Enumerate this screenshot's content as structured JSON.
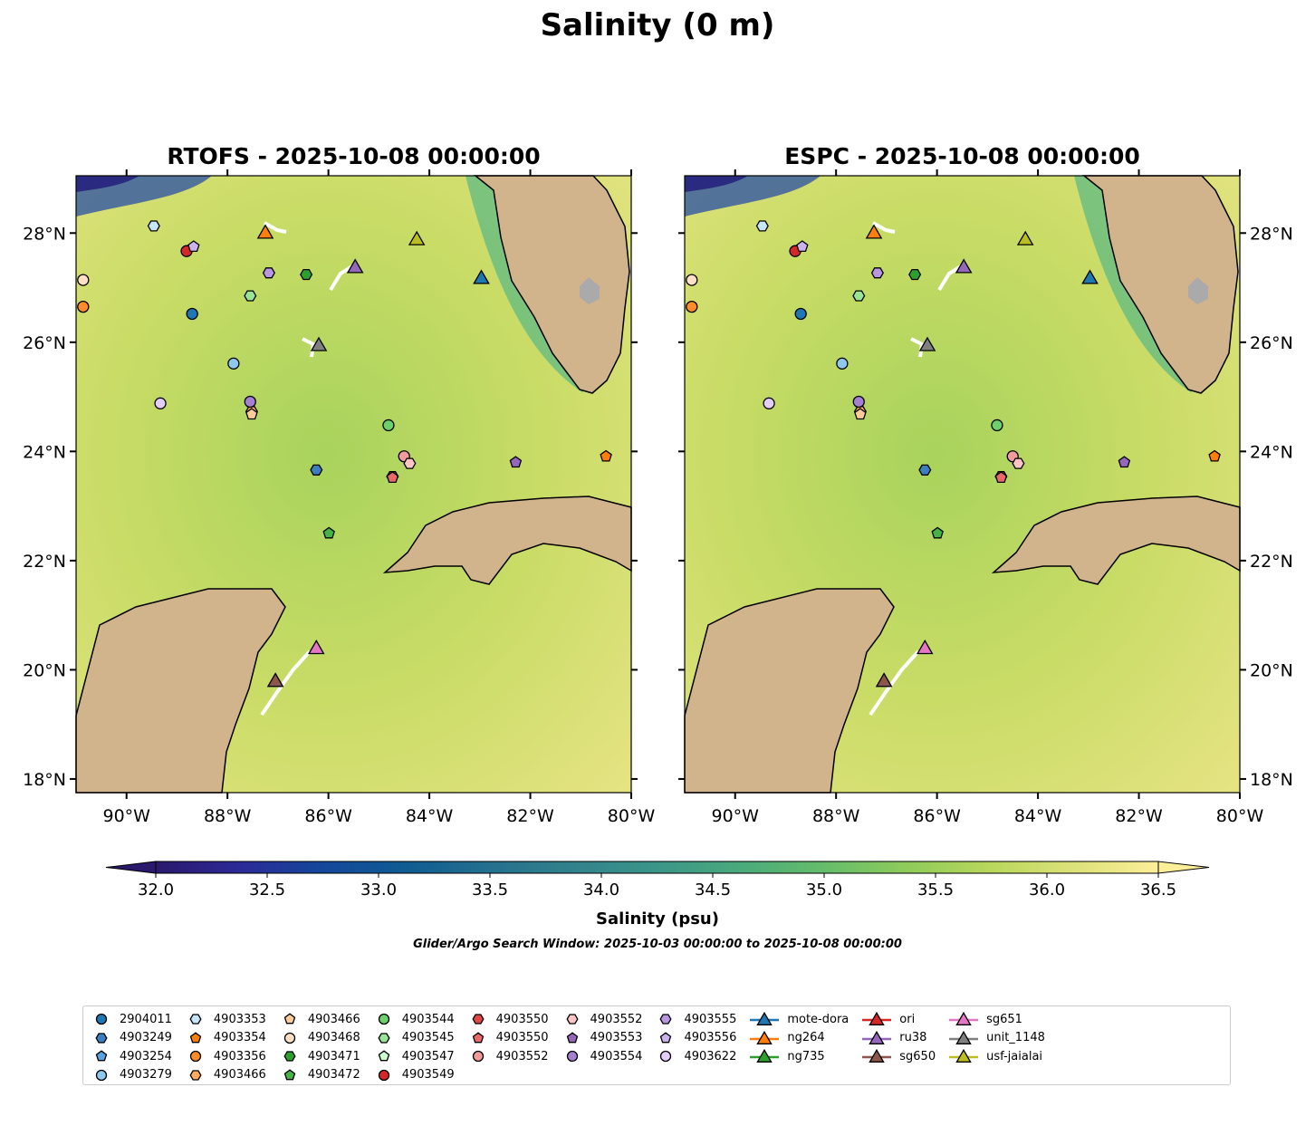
{
  "suptitle": "Salinity (0 m)",
  "window_text": "Glider/Argo Search Window: 2025-10-03 00:00:00 to 2025-10-08 00:00:00",
  "chart_data": {
    "type": "scatter",
    "panels": [
      {
        "title": "RTOFS - 2025-10-08 00:00:00"
      },
      {
        "title": "ESPC - 2025-10-08 00:00:00"
      }
    ],
    "xlim": [
      -91,
      -80
    ],
    "ylim": [
      17.75,
      29.05
    ],
    "xticks": [
      -90,
      -88,
      -86,
      -84,
      -82,
      -80
    ],
    "xtick_labels": [
      "90°W",
      "88°W",
      "86°W",
      "84°W",
      "82°W",
      "80°W"
    ],
    "yticks": [
      18,
      20,
      22,
      24,
      26,
      28
    ],
    "ytick_labels": [
      "18°N",
      "20°N",
      "22°N",
      "24°N",
      "26°N",
      "28°N"
    ],
    "colorbar": {
      "label": "Salinity (psu)",
      "min": 32.0,
      "max": 36.5,
      "ticks": [
        "32.0",
        "32.5",
        "33.0",
        "33.5",
        "34.0",
        "34.5",
        "35.0",
        "35.5",
        "36.0",
        "36.5"
      ],
      "extend": "both",
      "colormap": "haline"
    },
    "points": [
      {
        "name": "2904011",
        "marker": "circle",
        "color": "#1f77b4",
        "lon": -88.7,
        "lat": 26.52
      },
      {
        "name": "4903249",
        "marker": "hexagon",
        "color": "#3a7fc0",
        "lon": -86.24,
        "lat": 23.66
      },
      {
        "name": "4903254",
        "marker": "pentagon",
        "color": "#5aa3dc",
        "lon": null,
        "lat": null
      },
      {
        "name": "4903279",
        "marker": "circle",
        "color": "#8fc7ee",
        "lon": -87.88,
        "lat": 25.61
      },
      {
        "name": "4903353",
        "marker": "hexagon",
        "color": "#c6e6fb",
        "lon": -89.46,
        "lat": 28.13
      },
      {
        "name": "4903354",
        "marker": "pentagon",
        "color": "#ff7f0e",
        "lon": -80.5,
        "lat": 23.91
      },
      {
        "name": "4903356",
        "marker": "circle",
        "color": "#ff8c2a",
        "lon": -90.86,
        "lat": 26.65
      },
      {
        "name": "4903466",
        "marker": "hexagon",
        "color": "#ffac5e",
        "lon": -87.52,
        "lat": 24.73
      },
      {
        "name": "4903466",
        "marker": "pentagon",
        "color": "#ffcc99",
        "lon": -87.52,
        "lat": 24.68
      },
      {
        "name": "4903468",
        "marker": "circle",
        "color": "#ffe0c4",
        "lon": -90.86,
        "lat": 27.14
      },
      {
        "name": "4903471",
        "marker": "hexagon",
        "color": "#2ca02c",
        "lon": -86.44,
        "lat": 27.24
      },
      {
        "name": "4903472",
        "marker": "pentagon",
        "color": "#45b345",
        "lon": -85.99,
        "lat": 22.5
      },
      {
        "name": "4903544",
        "marker": "circle",
        "color": "#6cd16c",
        "lon": -84.81,
        "lat": 24.48
      },
      {
        "name": "4903545",
        "marker": "hexagon",
        "color": "#98e598",
        "lon": -87.55,
        "lat": 26.85
      },
      {
        "name": "4903547",
        "marker": "pentagon",
        "color": "#cffccf",
        "lon": null,
        "lat": null
      },
      {
        "name": "4903549",
        "marker": "circle",
        "color": "#d62728",
        "lon": -88.81,
        "lat": 27.67
      },
      {
        "name": "4903550",
        "marker": "hexagon",
        "color": "#e04848",
        "lon": -84.73,
        "lat": 23.54
      },
      {
        "name": "4903550",
        "marker": "pentagon",
        "color": "#ea6a6a",
        "lon": -84.73,
        "lat": 23.52
      },
      {
        "name": "4903552",
        "marker": "circle",
        "color": "#f49b9b",
        "lon": -84.5,
        "lat": 23.91
      },
      {
        "name": "4903552",
        "marker": "hexagon",
        "color": "#ffc4c4",
        "lon": -84.39,
        "lat": 23.78
      },
      {
        "name": "4903553",
        "marker": "pentagon",
        "color": "#9467bd",
        "lon": -82.29,
        "lat": 23.8
      },
      {
        "name": "4903554",
        "marker": "circle",
        "color": "#a57fd0",
        "lon": -87.55,
        "lat": 24.91
      },
      {
        "name": "4903555",
        "marker": "hexagon",
        "color": "#b897e0",
        "lon": -87.18,
        "lat": 27.27
      },
      {
        "name": "4903556",
        "marker": "pentagon",
        "color": "#cdb2f0",
        "lon": -88.67,
        "lat": 27.75
      },
      {
        "name": "4903622",
        "marker": "circle",
        "color": "#e3cdfb",
        "lon": -89.33,
        "lat": 24.88
      },
      {
        "name": "mote-dora",
        "marker": "triangle",
        "color": "#1f77b4",
        "lon": -82.97,
        "lat": 27.19
      },
      {
        "name": "ng264",
        "marker": "triangle",
        "color": "#ff7f0e",
        "lon": -87.25,
        "lat": 28.02
      },
      {
        "name": "ng735",
        "marker": "triangle",
        "color": "#2ca02c",
        "lon": null,
        "lat": null
      },
      {
        "name": "ori",
        "marker": "triangle",
        "color": "#d62728",
        "lon": null,
        "lat": null
      },
      {
        "name": "ru38",
        "marker": "triangle",
        "color": "#9467bd",
        "lon": -85.47,
        "lat": 27.39
      },
      {
        "name": "sg650",
        "marker": "triangle",
        "color": "#8c564b",
        "lon": -87.05,
        "lat": 19.81
      },
      {
        "name": "sg651",
        "marker": "triangle",
        "color": "#e377c2",
        "lon": -86.24,
        "lat": 20.41
      },
      {
        "name": "unit_1148",
        "marker": "triangle",
        "color": "#7f7f7f",
        "lon": -86.19,
        "lat": 25.96
      },
      {
        "name": "usf-jaialai",
        "marker": "triangle",
        "color": "#bcbd22",
        "lon": -84.25,
        "lat": 27.9
      }
    ],
    "legend_columns": [
      [
        0,
        1,
        2,
        3
      ],
      [
        4,
        5,
        6,
        7
      ],
      [
        8,
        9,
        10,
        11
      ],
      [
        12,
        13,
        14,
        15
      ],
      [
        16,
        17,
        18
      ],
      [
        19,
        20,
        21
      ],
      [
        22,
        23,
        24
      ],
      [
        25,
        26,
        27
      ],
      [
        28,
        29,
        30
      ],
      [
        31,
        32,
        33
      ]
    ]
  }
}
